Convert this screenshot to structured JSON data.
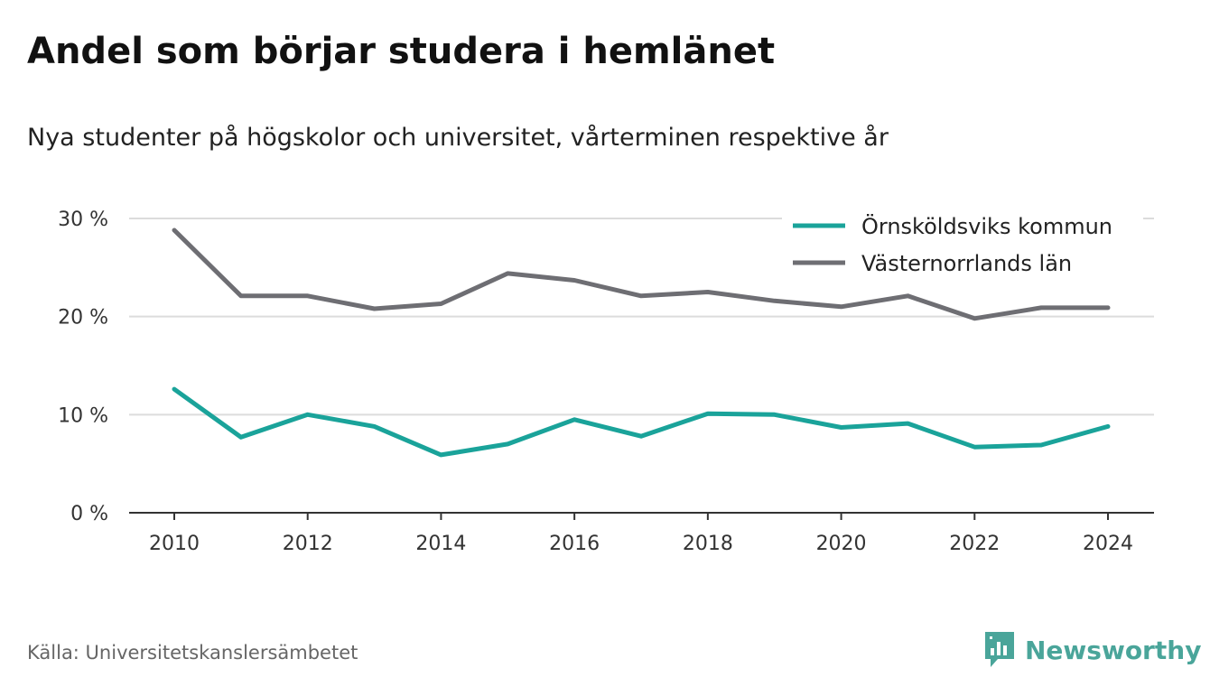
{
  "chart_data": {
    "type": "line",
    "title": "Andel som börjar studera i hemlänet",
    "subtitle": "Nya studenter på högskolor och universitet, vårterminen respektive år",
    "x": [
      2010,
      2011,
      2012,
      2013,
      2014,
      2015,
      2016,
      2017,
      2018,
      2019,
      2020,
      2021,
      2022,
      2023,
      2024
    ],
    "x_ticks": [
      2010,
      2012,
      2014,
      2016,
      2018,
      2020,
      2022,
      2024
    ],
    "x_tick_labels": [
      "2010",
      "2012",
      "2014",
      "2016",
      "2018",
      "2020",
      "2022",
      "2024"
    ],
    "y_ticks": [
      0,
      10,
      20,
      30
    ],
    "y_tick_labels": [
      "0 %",
      "10 %",
      "20 %",
      "30 %"
    ],
    "ylim": [
      0,
      30
    ],
    "grid": true,
    "legend_position": "top-right",
    "series": [
      {
        "name": "Örnsköldsviks kommun",
        "color": "#1aa39a",
        "values": [
          12.6,
          7.7,
          10.0,
          8.8,
          5.9,
          7.0,
          9.5,
          7.8,
          10.1,
          10.0,
          8.7,
          9.1,
          6.7,
          6.9,
          8.8
        ]
      },
      {
        "name": "Västernorrlands län",
        "color": "#6e6e73",
        "values": [
          28.8,
          22.1,
          22.1,
          20.8,
          21.3,
          24.4,
          23.7,
          22.1,
          22.5,
          21.6,
          21.0,
          22.1,
          19.8,
          20.9,
          20.9
        ]
      }
    ]
  },
  "footer": {
    "source": "Källa: Universitetskanslersämbetet",
    "brand": "Newsworthy",
    "brand_color": "#4aa59a"
  }
}
